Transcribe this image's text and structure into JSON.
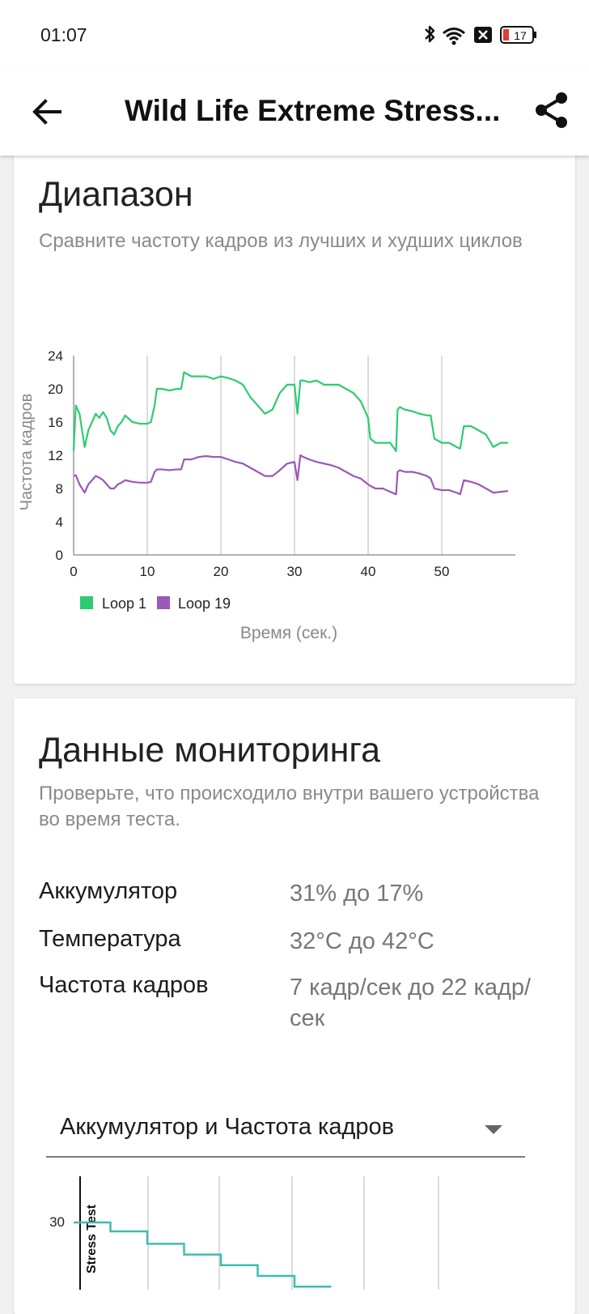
{
  "status_bar": {
    "time": "01:07",
    "battery_level": "17",
    "icons": [
      "bluetooth-icon",
      "wifi-icon",
      "notification-x-icon",
      "battery-icon"
    ]
  },
  "app_bar": {
    "title": "Wild Life Extreme Stress...",
    "back_icon": "arrow-left-icon",
    "share_icon": "share-icon"
  },
  "range_card": {
    "title": "Диапазон",
    "subtitle": "Сравните частоту кадров из лучших и худших циклов"
  },
  "chart_data": [
    {
      "type": "line",
      "title": "",
      "xlabel": "Время (сек.)",
      "ylabel": "Частота кадров",
      "xlim": [
        0,
        60
      ],
      "ylim": [
        0,
        24
      ],
      "x_ticks": [
        0,
        10,
        20,
        30,
        40,
        50
      ],
      "y_ticks": [
        0,
        4,
        8,
        12,
        16,
        20,
        24
      ],
      "grid": "vertical",
      "legend": "bottom-left",
      "series": [
        {
          "name": "Loop 1",
          "color": "#2ecc71",
          "x": [
            0,
            0.3,
            0.8,
            1.5,
            2,
            3,
            3.5,
            4,
            4.5,
            5,
            5.5,
            6,
            6.5,
            7,
            8,
            9,
            10,
            10.5,
            11,
            11.3,
            12,
            13,
            14,
            14.6,
            15,
            16,
            17,
            18,
            19,
            20,
            21,
            22,
            23,
            24,
            25,
            26,
            27,
            28,
            29,
            30,
            30.4,
            30.8,
            31.2,
            32,
            33,
            34,
            35,
            36,
            37,
            38,
            39,
            40,
            40.3,
            41,
            42,
            43,
            43.8,
            44,
            44.3,
            45,
            46,
            47,
            48,
            48.5,
            49,
            50,
            51,
            52,
            52.5,
            53,
            54,
            55,
            56,
            57,
            58,
            59
          ],
          "values": [
            12.5,
            18,
            17,
            13,
            15,
            17,
            16.5,
            17.2,
            16.5,
            15,
            14.5,
            15.5,
            16,
            16.8,
            16,
            15.8,
            15.8,
            16,
            18,
            20,
            20,
            19.8,
            20,
            20,
            22,
            21.5,
            21.5,
            21.5,
            21.2,
            21.5,
            21.3,
            21,
            20.5,
            19,
            18,
            17,
            17.5,
            19.5,
            20.5,
            20.5,
            17,
            21,
            21,
            20.8,
            21,
            20.5,
            20.5,
            20.5,
            20,
            19.5,
            18.5,
            16.5,
            14,
            13.5,
            13.5,
            13.5,
            12.5,
            17.5,
            17.8,
            17.5,
            17.3,
            17,
            16.8,
            16.8,
            14,
            13.5,
            13.5,
            13,
            12.8,
            15.5,
            15.5,
            15,
            14.5,
            13,
            13.5,
            13.5
          ]
        },
        {
          "name": "Loop 19",
          "color": "#9b59b6",
          "x": [
            0,
            0.3,
            0.8,
            1.5,
            2,
            3,
            3.5,
            4,
            4.5,
            5,
            5.5,
            6,
            6.5,
            7,
            8,
            9,
            10,
            10.5,
            11,
            11.3,
            12,
            13,
            14,
            14.6,
            15,
            16,
            17,
            18,
            19,
            20,
            21,
            22,
            23,
            24,
            25,
            26,
            27,
            28,
            29,
            30,
            30.4,
            30.8,
            31.2,
            32,
            33,
            34,
            35,
            36,
            37,
            38,
            39,
            40,
            40.3,
            41,
            42,
            43,
            43.8,
            44,
            44.3,
            45,
            46,
            47,
            48,
            48.5,
            49,
            50,
            51,
            52,
            52.5,
            53,
            54,
            55,
            56,
            57,
            58,
            59
          ],
          "values": [
            9.5,
            9.6,
            8.5,
            7.5,
            8.5,
            9.5,
            9.3,
            9,
            8.5,
            8,
            8,
            8.5,
            8.7,
            9,
            8.8,
            8.7,
            8.7,
            8.8,
            10,
            10.3,
            10.3,
            10.2,
            10.3,
            10.3,
            11.5,
            11.5,
            11.8,
            11.9,
            11.8,
            11.8,
            11.5,
            11.2,
            11,
            10.5,
            10,
            9.5,
            9.5,
            10.2,
            11,
            11.2,
            9,
            12,
            11.8,
            11.5,
            11.2,
            11,
            10.8,
            10.5,
            10,
            9.5,
            9.2,
            8.5,
            8.3,
            8,
            8,
            7.6,
            7.3,
            10,
            10.2,
            10,
            10,
            9.8,
            9.5,
            9.2,
            8,
            7.8,
            7.8,
            7.5,
            7.3,
            9,
            8.8,
            8.5,
            8,
            7.5,
            7.6,
            7.7
          ]
        }
      ]
    },
    {
      "type": "line",
      "title": "",
      "y_ticks": [
        30
      ],
      "annotation": "Stress Test",
      "series": [
        {
          "name": "Аккумулятор",
          "color": "#3dbdb0",
          "x": [
            0,
            5,
            10,
            15,
            20,
            25,
            30,
            35
          ],
          "values": [
            31,
            30.5,
            29.8,
            29.2,
            28.6,
            28.0,
            27.4,
            27.4
          ]
        }
      ]
    }
  ],
  "legend_labels": [
    "Loop 1",
    "Loop 19"
  ],
  "monitoring_card": {
    "title": "Данные мониторинга",
    "subtitle": "Проверьте, что происходило внутри вашего устройства во время теста.",
    "stats": [
      {
        "label": "Аккумулятор",
        "value": "31% до 17%"
      },
      {
        "label": "Температура",
        "value": "32°C до 42°C"
      },
      {
        "label": "Частота кадров",
        "value": "7 кадр/сек до 22 кадр/сек"
      }
    ],
    "dropdown": {
      "selected": "Аккумулятор и Частота кадров",
      "icon": "dropdown-arrow-icon"
    },
    "mini_chart_label": "Stress Test",
    "mini_chart_tick": "30"
  }
}
